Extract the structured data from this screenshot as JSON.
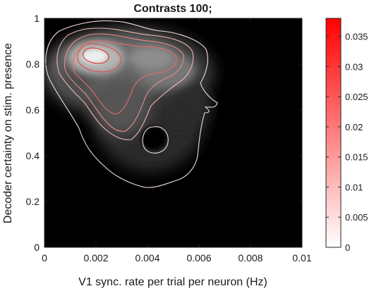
{
  "chart_data": {
    "type": "heatmap",
    "title": "Contrasts 100;",
    "xlabel": "V1 sync. rate per trial per neuron (Hz)",
    "ylabel": "Decoder certainty on stim. presence",
    "xlim": [
      0,
      0.01
    ],
    "ylim": [
      0,
      1
    ],
    "x_ticks": [
      0,
      0.002,
      0.004,
      0.006,
      0.008,
      0.01
    ],
    "x_tick_labels": [
      "0",
      "0.002",
      "0.004",
      "0.006",
      "0.008",
      "0.01"
    ],
    "y_ticks": [
      0,
      0.2,
      0.4,
      0.6,
      0.8,
      1
    ],
    "y_tick_labels": [
      "0",
      "0.2",
      "0.4",
      "0.6",
      "0.8",
      "1"
    ],
    "colorbar": {
      "range": [
        0,
        0.038
      ],
      "ticks": [
        0,
        0.005,
        0.01,
        0.015,
        0.02,
        0.025,
        0.03,
        0.035
      ],
      "tick_labels": [
        "0",
        "0.005",
        "0.01",
        "0.015",
        "0.02",
        "0.025",
        "0.03",
        "0.035"
      ],
      "color_low": "#ffffff",
      "color_high": "#ff0000"
    },
    "background_color": "#000000",
    "density_peaks": [
      {
        "x": 0.0021,
        "y": 0.83,
        "weight": 1.0
      },
      {
        "x": 0.004,
        "y": 0.82,
        "weight": 0.75
      },
      {
        "x": 0.003,
        "y": 0.63,
        "weight": 0.45
      },
      {
        "x": 0.0015,
        "y": 0.72,
        "weight": 0.35
      },
      {
        "x": 0.0048,
        "y": 0.5,
        "weight": 0.2
      }
    ],
    "contour_levels": [
      0.005,
      0.01,
      0.015,
      0.02,
      0.025,
      0.03
    ],
    "contour_colors": [
      "#f4dada",
      "#f0b4b4",
      "#ec8c8c",
      "#e86a6a",
      "#e44848",
      "#e02828"
    ]
  }
}
